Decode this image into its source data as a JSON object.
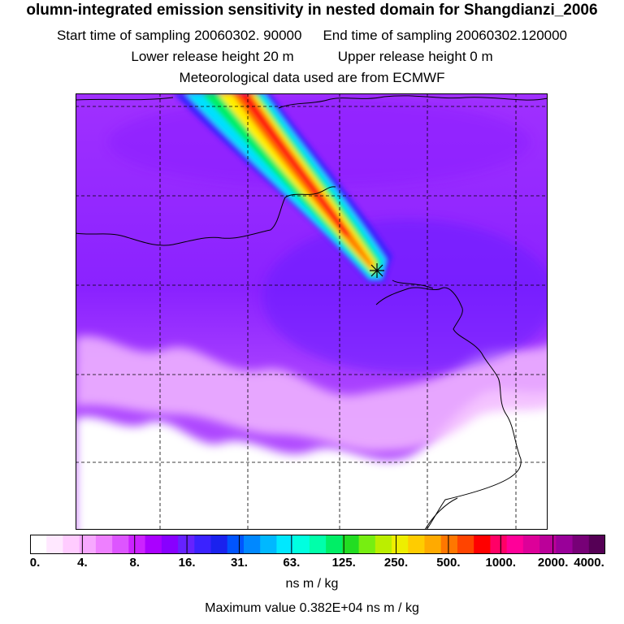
{
  "header": {
    "title": "olumn-integrated emission sensitivity in nested domain for Shangdianzi_2006",
    "start_sampling": "Start time of sampling 20060302. 90000",
    "end_sampling": "End time of sampling 20060302.120000",
    "lower_release": "Lower release height   20 m",
    "upper_release": "Upper release height    0 m",
    "met_data": "Meteorological data used are from ECMWF"
  },
  "colorbar": {
    "tick_labels": [
      "0.",
      "4.",
      "8.",
      "16.",
      "31.",
      "63.",
      "125.",
      "250.",
      "500.",
      "1000.",
      "2000.",
      "4000."
    ],
    "colors": [
      "#ffffff",
      "#ffe8ff",
      "#ffccff",
      "#f7a8ff",
      "#ee80ff",
      "#dd55ff",
      "#cc22ff",
      "#aa00ff",
      "#8800ff",
      "#6622ff",
      "#3b22ff",
      "#1a22ee",
      "#0055ff",
      "#0088ff",
      "#00b8ff",
      "#00e8ff",
      "#00ffe0",
      "#00ffaa",
      "#00ee66",
      "#22dd22",
      "#77ee11",
      "#bbee00",
      "#eeee00",
      "#ffcc00",
      "#ffaa00",
      "#ff7700",
      "#ff4400",
      "#ff0000",
      "#ff0066",
      "#ff0099",
      "#dd0099",
      "#bb0099",
      "#990099",
      "#770077",
      "#550055"
    ],
    "units": "ns m / kg"
  },
  "footer": {
    "max_value": "Maximum value  0.382E+04 ns m / kg"
  },
  "map": {
    "receptor_symbol": "*",
    "gridline_color": "#000000",
    "background_field_color": "#9b2cff"
  }
}
